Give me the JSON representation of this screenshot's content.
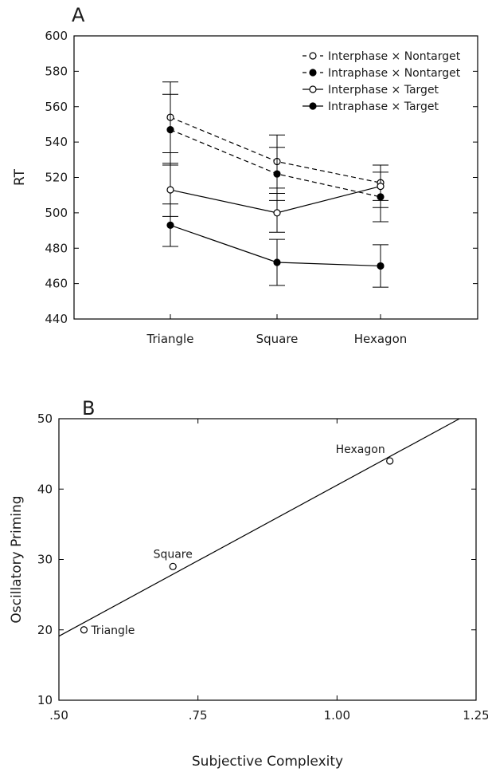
{
  "chart_data": [
    {
      "panel": "A",
      "type": "line",
      "title": "",
      "xlabel": "",
      "ylabel": "RT",
      "ylim": [
        440,
        600
      ],
      "yticks": [
        440,
        460,
        480,
        500,
        520,
        540,
        560,
        580,
        600
      ],
      "categories": [
        "Triangle",
        "Square",
        "Hexagon"
      ],
      "legend_position": "top-right",
      "grid": false,
      "series": [
        {
          "name": "Interphase × Nontarget",
          "values": [
            554,
            529,
            517
          ],
          "errors": [
            20,
            15,
            10
          ],
          "line": "dashed",
          "marker": "open"
        },
        {
          "name": "Intraphase × Nontarget",
          "values": [
            547,
            522,
            509
          ],
          "errors": [
            20,
            15,
            14
          ],
          "line": "dashed",
          "marker": "filled"
        },
        {
          "name": "Interphase × Target",
          "values": [
            513,
            500,
            515
          ],
          "errors": [
            15,
            11,
            12
          ],
          "line": "solid",
          "marker": "open"
        },
        {
          "name": "Intraphase × Target",
          "values": [
            493,
            472,
            470
          ],
          "errors": [
            12,
            13,
            12
          ],
          "line": "solid",
          "marker": "filled"
        }
      ]
    },
    {
      "panel": "B",
      "type": "scatter",
      "title": "",
      "xlabel": "Subjective Complexity",
      "ylabel": "Oscillatory Priming",
      "xlim": [
        0.5,
        1.25
      ],
      "ylim": [
        10,
        50
      ],
      "xticks": [
        0.5,
        0.75,
        1.0,
        1.25
      ],
      "xtick_labels": [
        ".50",
        ".75",
        "1.00",
        "1.25"
      ],
      "yticks": [
        10,
        20,
        30,
        40,
        50
      ],
      "grid": false,
      "points": [
        {
          "label": "Triangle",
          "x": 0.545,
          "y": 20
        },
        {
          "label": "Square",
          "x": 0.705,
          "y": 29
        },
        {
          "label": "Hexagon",
          "x": 1.095,
          "y": 44
        }
      ],
      "fit_line": {
        "slope": 42.9,
        "intercept": -2.35
      }
    }
  ]
}
